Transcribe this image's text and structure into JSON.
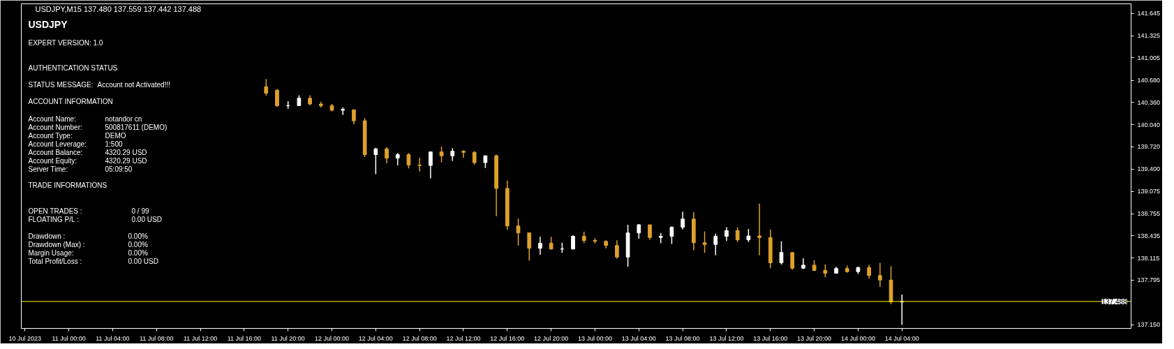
{
  "chart_data": {
    "type": "candlestick",
    "title": "USDJPY,M15  137.480 137.559 137.442 137.488",
    "x": [
      "2023-07-11T18:00",
      "2023-07-11T19:00",
      "2023-07-11T20:00",
      "2023-07-11T21:00",
      "2023-07-11T22:00",
      "2023-07-11T23:00",
      "2023-07-12T00:00",
      "2023-07-12T01:00",
      "2023-07-12T02:00",
      "2023-07-12T03:00",
      "2023-07-12T04:00",
      "2023-07-12T05:00",
      "2023-07-12T06:00",
      "2023-07-12T07:00",
      "2023-07-12T08:00",
      "2023-07-12T09:00",
      "2023-07-12T10:00",
      "2023-07-12T11:00",
      "2023-07-12T12:00",
      "2023-07-12T13:00",
      "2023-07-12T14:00",
      "2023-07-12T15:00",
      "2023-07-12T16:00",
      "2023-07-12T17:00",
      "2023-07-12T18:00",
      "2023-07-12T19:00",
      "2023-07-12T20:00",
      "2023-07-12T21:00",
      "2023-07-12T22:00",
      "2023-07-12T23:00",
      "2023-07-13T00:00",
      "2023-07-13T01:00",
      "2023-07-13T02:00",
      "2023-07-13T03:00",
      "2023-07-13T04:00",
      "2023-07-13T05:00",
      "2023-07-13T06:00",
      "2023-07-13T07:00",
      "2023-07-13T08:00",
      "2023-07-13T09:00",
      "2023-07-13T10:00",
      "2023-07-13T11:00",
      "2023-07-13T12:00",
      "2023-07-13T13:00",
      "2023-07-13T14:00",
      "2023-07-13T15:00",
      "2023-07-13T16:00",
      "2023-07-13T17:00",
      "2023-07-13T18:00",
      "2023-07-13T19:00",
      "2023-07-13T20:00",
      "2023-07-13T21:00",
      "2023-07-13T22:00",
      "2023-07-13T23:00",
      "2023-07-14T00:00",
      "2023-07-14T01:00",
      "2023-07-14T02:00",
      "2023-07-14T03:00",
      "2023-07-14T04:00"
    ],
    "ohlc": [
      [
        140.588,
        140.698,
        140.462,
        140.495
      ],
      [
        140.538,
        140.555,
        140.299,
        140.315
      ],
      [
        140.315,
        140.379,
        140.272,
        140.315
      ],
      [
        140.315,
        140.465,
        140.315,
        140.422
      ],
      [
        140.422,
        140.465,
        140.322,
        140.339
      ],
      [
        140.339,
        140.372,
        140.289,
        140.315
      ],
      [
        140.315,
        140.339,
        140.232,
        140.249
      ],
      [
        140.249,
        140.289,
        140.179,
        140.262
      ],
      [
        140.256,
        140.256,
        140.046,
        140.096
      ],
      [
        140.096,
        140.136,
        139.574,
        139.608
      ],
      [
        139.608,
        139.707,
        139.325,
        139.691
      ],
      [
        139.691,
        139.717,
        139.485,
        139.558
      ],
      [
        139.558,
        139.631,
        139.451,
        139.608
      ],
      [
        139.608,
        139.631,
        139.408,
        139.458
      ],
      [
        139.458,
        139.564,
        139.365,
        139.451
      ],
      [
        139.451,
        139.651,
        139.265,
        139.648
      ],
      [
        139.648,
        139.724,
        139.498,
        139.591
      ],
      [
        139.591,
        139.701,
        139.518,
        139.657
      ],
      [
        139.657,
        139.671,
        139.564,
        139.641
      ],
      [
        139.641,
        139.658,
        139.465,
        139.492
      ],
      [
        139.492,
        139.592,
        139.415,
        139.592
      ],
      [
        139.592,
        139.608,
        138.718,
        139.12
      ],
      [
        139.12,
        139.233,
        138.522,
        138.578
      ],
      [
        138.578,
        138.684,
        138.296,
        138.478
      ],
      [
        138.478,
        138.485,
        138.08,
        138.256
      ],
      [
        138.256,
        138.422,
        138.163,
        138.329
      ],
      [
        138.329,
        138.422,
        138.236,
        138.246
      ],
      [
        138.246,
        138.336,
        138.189,
        138.246
      ],
      [
        138.246,
        138.445,
        138.239,
        138.429
      ],
      [
        138.429,
        138.495,
        138.329,
        138.369
      ],
      [
        138.369,
        138.402,
        138.329,
        138.355
      ],
      [
        138.355,
        138.372,
        138.256,
        138.296
      ],
      [
        138.296,
        138.372,
        138.106,
        138.13
      ],
      [
        138.13,
        138.595,
        137.99,
        138.478
      ],
      [
        138.478,
        138.605,
        138.395,
        138.595
      ],
      [
        138.595,
        138.595,
        138.379,
        138.412
      ],
      [
        138.412,
        138.472,
        138.329,
        138.429
      ],
      [
        138.429,
        138.571,
        138.319,
        138.561
      ],
      [
        138.561,
        138.784,
        138.528,
        138.678
      ],
      [
        138.678,
        138.777,
        138.228,
        138.335
      ],
      [
        138.335,
        138.501,
        138.189,
        138.311
      ],
      [
        138.311,
        138.468,
        138.155,
        138.428
      ],
      [
        138.428,
        138.561,
        138.361,
        138.511
      ],
      [
        138.511,
        138.561,
        138.345,
        138.378
      ],
      [
        138.378,
        138.534,
        138.345,
        138.434
      ],
      [
        138.434,
        138.9,
        138.155,
        138.411
      ],
      [
        138.411,
        138.527,
        137.969,
        138.046
      ],
      [
        138.046,
        138.355,
        138.022,
        138.195
      ],
      [
        138.195,
        138.195,
        137.946,
        137.969
      ],
      [
        137.969,
        138.112,
        137.956,
        138.012
      ],
      [
        138.012,
        138.085,
        137.929,
        137.936
      ],
      [
        137.936,
        138.022,
        137.836,
        137.896
      ],
      [
        137.896,
        137.989,
        137.889,
        137.963
      ],
      [
        137.963,
        138.006,
        137.903,
        137.919
      ],
      [
        137.919,
        137.989,
        137.886,
        137.979
      ],
      [
        137.979,
        138.019,
        137.82,
        137.863
      ],
      [
        137.863,
        138.046,
        137.697,
        137.797
      ],
      [
        137.797,
        137.996,
        137.448,
        137.481
      ],
      [
        137.481,
        137.587,
        137.15,
        137.488
      ]
    ],
    "colors": [
      "#dfa12b",
      "#dfa12b",
      "#ffffff",
      "#ffffff",
      "#dfa12b",
      "#dfa12b",
      "#dfa12b",
      "#ffffff",
      "#dfa12b",
      "#dfa12b",
      "#ffffff",
      "#dfa12b",
      "#ffffff",
      "#dfa12b",
      "#dfa12b",
      "#ffffff",
      "#dfa12b",
      "#ffffff",
      "#dfa12b",
      "#dfa12b",
      "#ffffff",
      "#dfa12b",
      "#dfa12b",
      "#dfa12b",
      "#dfa12b",
      "#ffffff",
      "#dfa12b",
      "#ffffff",
      "#ffffff",
      "#dfa12b",
      "#dfa12b",
      "#dfa12b",
      "#dfa12b",
      "#ffffff",
      "#ffffff",
      "#dfa12b",
      "#ffffff",
      "#ffffff",
      "#ffffff",
      "#dfa12b",
      "#dfa12b",
      "#ffffff",
      "#ffffff",
      "#dfa12b",
      "#ffffff",
      "#dfa12b",
      "#dfa12b",
      "#ffffff",
      "#dfa12b",
      "#ffffff",
      "#dfa12b",
      "#dfa12b",
      "#ffffff",
      "#dfa12b",
      "#ffffff",
      "#dfa12b",
      "#dfa12b",
      "#dfa12b",
      "#ffffff"
    ],
    "xlim": [
      "2023-07-10T19:40",
      "2023-07-15T00:54"
    ],
    "xticks": [
      {
        "value": "2023-07-10T20:00",
        "label": "10 Jul 2023"
      },
      {
        "value": "2023-07-11T00:00",
        "label": "11 Jul 00:00"
      },
      {
        "value": "2023-07-11T04:00",
        "label": "11 Jul 04:00"
      },
      {
        "value": "2023-07-11T08:00",
        "label": "11 Jul 08:00"
      },
      {
        "value": "2023-07-11T12:00",
        "label": "11 Jul 12:00"
      },
      {
        "value": "2023-07-11T16:00",
        "label": "11 Jul 16:00"
      },
      {
        "value": "2023-07-11T20:00",
        "label": "11 Jul 20:00"
      },
      {
        "value": "2023-07-12T00:00",
        "label": "12 Jul 00:00"
      },
      {
        "value": "2023-07-12T04:00",
        "label": "12 Jul 04:00"
      },
      {
        "value": "2023-07-12T08:00",
        "label": "12 Jul 08:00"
      },
      {
        "value": "2023-07-12T12:00",
        "label": "12 Jul 12:00"
      },
      {
        "value": "2023-07-12T16:00",
        "label": "12 Jul 16:00"
      },
      {
        "value": "2023-07-12T20:00",
        "label": "12 Jul 20:00"
      },
      {
        "value": "2023-07-13T00:00",
        "label": "13 Jul 00:00"
      },
      {
        "value": "2023-07-13T04:00",
        "label": "13 Jul 04:00"
      },
      {
        "value": "2023-07-13T08:00",
        "label": "13 Jul 08:00"
      },
      {
        "value": "2023-07-13T12:00",
        "label": "13 Jul 12:00"
      },
      {
        "value": "2023-07-13T16:00",
        "label": "13 Jul 16:00"
      },
      {
        "value": "2023-07-13T20:00",
        "label": "13 Jul 20:00"
      },
      {
        "value": "2023-07-14T00:00",
        "label": "14 Jul 00:00"
      },
      {
        "value": "2023-07-14T04:00",
        "label": "14 Jul 04:00"
      }
    ],
    "ylim": [
      137.099,
      141.785
    ],
    "yticks": [
      141.645,
      141.325,
      141.005,
      {
        "value": 140.68,
        "label": "140.680"
      },
      {
        "value": 140.36,
        "label": "140.360"
      },
      {
        "value": 140.04,
        "label": "140.040"
      },
      {
        "value": 139.72,
        "label": "139.720"
      },
      {
        "value": 139.4,
        "label": "139.400"
      },
      139.075,
      138.755,
      138.435,
      138.115,
      137.795,
      {
        "value": 137.15,
        "label": "137.150"
      }
    ],
    "ref_lines": [
      {
        "axis": "y",
        "value": 137.488,
        "label": "137.488",
        "color": "#ffff00"
      }
    ],
    "annotations": [
      "USDJPY",
      "EXPERT VERSION: 1.0",
      "AUTHENTICATION STATUS",
      "STATUS MESSAGE:",
      "Account not Activated!!!",
      "ACCOUNT INFORMATION",
      "Account Name:",
      "notandor cn",
      "Account Number:",
      "500817611 (DEMO)",
      "Account Type:",
      "DEMO",
      "Account Leverage:",
      "1:500",
      "Account Balance:",
      "4320.29 USD",
      "Account Equity:",
      "4320.29 USD",
      "Server Time:",
      "05:09:50",
      "TRADE INFORMATIONS",
      "OPEN TRADES :",
      "0 / 99",
      "FLOATING P/L :",
      "0.00 USD",
      "Drawdown :",
      "0.00%",
      "Drawdown (Max) :",
      "0.00%",
      "Margin Usage:",
      "0.00%",
      "Total Profit/Loss :",
      "0.00 USD"
    ]
  }
}
